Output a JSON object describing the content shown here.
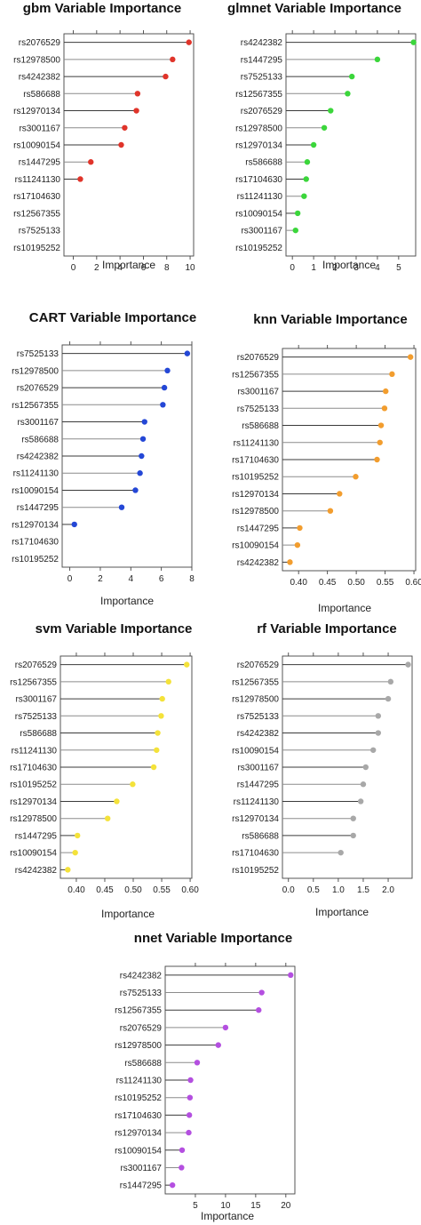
{
  "chart_data": [
    {
      "type": "dot",
      "title": "gbm Variable Importance",
      "xlabel": "Importance",
      "color": "#e0342a",
      "xlim": [
        -0.8,
        10.3
      ],
      "ticks": [
        0,
        2,
        4,
        6,
        8,
        10
      ],
      "tick_labels": [
        "0",
        "2",
        "4",
        "6",
        "8",
        "10"
      ],
      "categories": [
        "rs2076529",
        "rs12978500",
        "rs4242382",
        "rs586688",
        "rs12970134",
        "rs3001167",
        "rs10090154",
        "rs1447295",
        "rs11241130",
        "rs17104630",
        "rs12567355",
        "rs7525133",
        "rs10195252"
      ],
      "values": [
        9.9,
        8.5,
        7.9,
        5.5,
        5.4,
        4.4,
        4.1,
        1.5,
        0.6,
        null,
        null,
        null,
        null
      ]
    },
    {
      "type": "dot",
      "title": "glmnet Variable Importance",
      "xlabel": "Importance",
      "color": "#3bd63b",
      "xlim": [
        -0.3,
        5.8
      ],
      "ticks": [
        0,
        1,
        2,
        3,
        4,
        5
      ],
      "tick_labels": [
        "0",
        "1",
        "2",
        "3",
        "4",
        "5"
      ],
      "categories": [
        "rs4242382",
        "rs1447295",
        "rs7525133",
        "rs12567355",
        "rs2076529",
        "rs12978500",
        "rs12970134",
        "rs586688",
        "rs17104630",
        "rs11241130",
        "rs10090154",
        "rs3001167",
        "rs10195252"
      ],
      "values": [
        5.7,
        4.0,
        2.8,
        2.6,
        1.8,
        1.5,
        1.0,
        0.7,
        0.65,
        0.55,
        0.25,
        0.15,
        null
      ]
    },
    {
      "type": "dot",
      "title": "CART Variable Importance",
      "xlabel": "Importance",
      "color": "#2447d6",
      "xlim": [
        -0.5,
        8.0
      ],
      "ticks": [
        0,
        2,
        4,
        6,
        8
      ],
      "tick_labels": [
        "0",
        "2",
        "4",
        "6",
        "8"
      ],
      "categories": [
        "rs7525133",
        "rs12978500",
        "rs2076529",
        "rs12567355",
        "rs3001167",
        "rs586688",
        "rs4242382",
        "rs11241130",
        "rs10090154",
        "rs1447295",
        "rs12970134",
        "rs17104630",
        "rs10195252"
      ],
      "values": [
        7.7,
        6.4,
        6.2,
        6.1,
        4.9,
        4.8,
        4.7,
        4.6,
        4.3,
        3.4,
        0.3,
        null,
        null
      ]
    },
    {
      "type": "dot",
      "title": "knn Variable Importance",
      "xlabel": "Importance",
      "color": "#f29d2e",
      "xlim": [
        0.372,
        0.603
      ],
      "ticks": [
        0.4,
        0.45,
        0.5,
        0.55,
        0.6
      ],
      "tick_labels": [
        "0.40",
        "0.45",
        "0.50",
        "0.55",
        "0.60"
      ],
      "categories": [
        "rs2076529",
        "rs12567355",
        "rs3001167",
        "rs7525133",
        "rs586688",
        "rs11241130",
        "rs17104630",
        "rs10195252",
        "rs12970134",
        "rs12978500",
        "rs1447295",
        "rs10090154",
        "rs4242382"
      ],
      "values": [
        0.594,
        0.562,
        0.551,
        0.549,
        0.543,
        0.541,
        0.536,
        0.499,
        0.471,
        0.455,
        0.402,
        0.398,
        0.385
      ]
    },
    {
      "type": "dot",
      "title": "svm Variable Importance",
      "xlabel": "Importance",
      "color": "#f4e23a",
      "xlim": [
        0.372,
        0.603
      ],
      "ticks": [
        0.4,
        0.45,
        0.5,
        0.55,
        0.6
      ],
      "tick_labels": [
        "0.40",
        "0.45",
        "0.50",
        "0.55",
        "0.60"
      ],
      "categories": [
        "rs2076529",
        "rs12567355",
        "rs3001167",
        "rs7525133",
        "rs586688",
        "rs11241130",
        "rs17104630",
        "rs10195252",
        "rs12970134",
        "rs12978500",
        "rs1447295",
        "rs10090154",
        "rs4242382"
      ],
      "values": [
        0.594,
        0.562,
        0.551,
        0.549,
        0.543,
        0.541,
        0.536,
        0.499,
        0.471,
        0.455,
        0.402,
        0.398,
        0.385
      ]
    },
    {
      "type": "dot",
      "title": "rf Variable Importance",
      "xlabel": "Importance",
      "color": "#a8a8a8",
      "xlim": [
        -0.12,
        2.48
      ],
      "ticks": [
        0.0,
        0.5,
        1.0,
        1.5,
        2.0
      ],
      "tick_labels": [
        "0.0",
        "0.5",
        "1.0",
        "1.5",
        "2.0"
      ],
      "categories": [
        "rs2076529",
        "rs12567355",
        "rs12978500",
        "rs7525133",
        "rs4242382",
        "rs10090154",
        "rs3001167",
        "rs1447295",
        "rs11241130",
        "rs12970134",
        "rs586688",
        "rs17104630",
        "rs10195252"
      ],
      "values": [
        2.4,
        2.05,
        2.0,
        1.8,
        1.8,
        1.7,
        1.55,
        1.5,
        1.45,
        1.3,
        1.3,
        1.05,
        null
      ]
    },
    {
      "type": "dot",
      "title": "nnet Variable Importance",
      "xlabel": "Importance",
      "color": "#b44fe0",
      "xlim": [
        0,
        21.5
      ],
      "ticks": [
        5,
        10,
        15,
        20
      ],
      "tick_labels": [
        "5",
        "10",
        "15",
        "20"
      ],
      "categories": [
        "rs4242382",
        "rs7525133",
        "rs12567355",
        "rs2076529",
        "rs12978500",
        "rs586688",
        "rs11241130",
        "rs10195252",
        "rs17104630",
        "rs12970134",
        "rs10090154",
        "rs3001167",
        "rs1447295"
      ],
      "values": [
        20.8,
        16.0,
        15.5,
        10.0,
        8.8,
        5.3,
        4.2,
        4.1,
        4.0,
        3.9,
        2.8,
        2.7,
        1.2
      ]
    }
  ]
}
